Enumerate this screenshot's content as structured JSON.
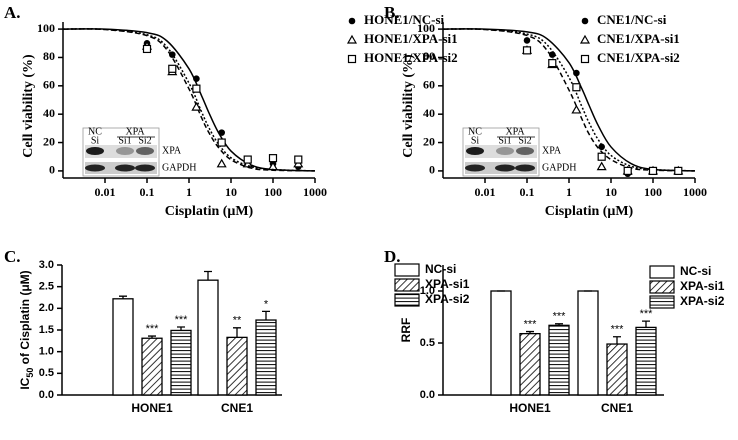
{
  "chart_data": [
    {
      "type": "dose_response",
      "panel_label": "A.",
      "y_label": "Cell viability (%)",
      "x_label": "Cisplatin (μM)",
      "log_x": true,
      "xlim": [
        0.001,
        1000
      ],
      "ylim": [
        -5,
        105
      ],
      "xticks": [
        0.01,
        0.1,
        1,
        10,
        100,
        1000
      ],
      "yticks": [
        0,
        20,
        40,
        60,
        80,
        100
      ],
      "x": [
        0.1,
        0.4,
        1.5,
        6,
        25,
        100,
        400
      ],
      "curve_x": [
        0.001,
        0.01,
        0.1,
        0.3,
        1,
        2,
        3,
        5,
        10,
        30,
        100,
        1000
      ],
      "series": [
        {
          "name": "HONE1/NC-si",
          "marker": "circle",
          "line": "solid",
          "values": [
            90,
            82,
            65,
            27,
            8,
            5,
            3
          ],
          "curve": [
            100,
            100,
            97.5,
            91.6,
            72,
            52.9,
            40.8,
            27.2,
            14,
            4.2,
            1,
            0
          ]
        },
        {
          "name": "HONE1/XPA-si1",
          "marker": "triangle",
          "line": "dashed",
          "values": [
            88,
            70,
            45,
            5,
            5,
            3,
            5
          ],
          "curve": [
            100,
            99.7,
            95.4,
            85.3,
            57.8,
            37.4,
            26.8,
            16.6,
            7.9,
            2,
            0.5,
            0
          ]
        },
        {
          "name": "HONE1/XPA-si2",
          "marker": "square",
          "line": "dotted",
          "values": [
            86,
            72,
            58,
            20,
            8,
            9,
            8
          ],
          "curve": [
            100,
            99.8,
            96,
            87.3,
            61.9,
            41.5,
            30.3,
            19.1,
            9.3,
            3,
            1,
            0
          ]
        }
      ],
      "inset": {
        "lane_top": [
          "NC",
          "XPA"
        ],
        "lane_bottom": [
          "Si",
          "Si1",
          "Si2"
        ],
        "rows": [
          "XPA",
          "GAPDH"
        ]
      }
    },
    {
      "type": "dose_response",
      "panel_label": "B.",
      "y_label": "Cell viability (%)",
      "x_label": "Cisplatin (μM)",
      "log_x": true,
      "xlim": [
        0.001,
        1000
      ],
      "ylim": [
        -5,
        105
      ],
      "xticks": [
        0.01,
        0.1,
        1,
        10,
        100,
        1000
      ],
      "yticks": [
        0,
        20,
        40,
        60,
        80,
        100
      ],
      "x": [
        0.1,
        0.4,
        1.5,
        6,
        25,
        100,
        400
      ],
      "curve_x": [
        0.001,
        0.01,
        0.1,
        0.3,
        1,
        2,
        3,
        5,
        10,
        30,
        100,
        1000
      ],
      "series": [
        {
          "name": "CNE1/NC-si",
          "marker": "circle",
          "line": "solid",
          "values": [
            92,
            82,
            69,
            17,
            -2,
            0,
            0
          ],
          "curve": [
            100,
            100,
            98,
            93.2,
            76.3,
            58.3,
            46.3,
            31.8,
            16.9,
            5.2,
            1,
            0
          ]
        },
        {
          "name": "CNE1/XPA-si1",
          "marker": "triangle",
          "line": "dashed",
          "values": [
            85,
            75,
            43,
            3,
            0,
            0,
            0
          ],
          "curve": [
            100,
            99.7,
            95.5,
            85,
            57,
            37,
            26,
            16,
            8,
            2,
            0.5,
            0
          ]
        },
        {
          "name": "CNE1/XPA-si2",
          "marker": "square",
          "line": "dotted",
          "values": [
            85,
            76,
            59,
            10,
            0,
            0,
            0
          ],
          "curve": [
            100,
            99.8,
            96.5,
            89,
            65.9,
            45.7,
            34,
            21.9,
            10.9,
            3.3,
            1,
            0
          ]
        }
      ],
      "inset": {
        "lane_top": [
          "NC",
          "XPA"
        ],
        "lane_bottom": [
          "Si",
          "Si1",
          "Si2"
        ],
        "rows": [
          "XPA",
          "GAPDH"
        ]
      }
    },
    {
      "type": "bar",
      "panel_label": "C.",
      "y_label_parts": [
        "IC",
        "50",
        " of Cisplatin (μM)"
      ],
      "categories": [
        "HONE1",
        "CNE1"
      ],
      "ylim": [
        0,
        3.0
      ],
      "yticks": [
        {
          "value": 0,
          "label": "0.0"
        },
        0.5,
        {
          "value": 1,
          "label": "1.0"
        },
        1.5,
        {
          "value": 2,
          "label": "2.0"
        },
        2.5,
        {
          "value": 3,
          "label": "3.0"
        }
      ],
      "series": [
        {
          "name": "NC-si",
          "pattern": "none",
          "values": [
            2.22,
            2.65
          ],
          "errors": [
            0.06,
            0.2
          ]
        },
        {
          "name": "XPA-si1",
          "pattern": "diagonal",
          "values": [
            1.31,
            1.33
          ],
          "errors": [
            0.05,
            0.22
          ],
          "significance": [
            "***",
            "**"
          ]
        },
        {
          "name": "XPA-si2",
          "pattern": "horizontal",
          "values": [
            1.49,
            1.73
          ],
          "errors": [
            0.08,
            0.2
          ],
          "significance": [
            "***",
            "*"
          ]
        }
      ]
    },
    {
      "type": "bar",
      "panel_label": "D.",
      "y_label": "RRF",
      "categories": [
        "HONE1",
        "CNE1"
      ],
      "ylim": [
        0,
        1.25
      ],
      "yticks": [
        {
          "value": 0,
          "label": "0.0"
        },
        0.5,
        {
          "value": 1,
          "label": "1.0"
        }
      ],
      "series": [
        {
          "name": "NC-si",
          "pattern": "none",
          "values": [
            1,
            1
          ],
          "errors": [
            0,
            0
          ]
        },
        {
          "name": "XPA-si1",
          "pattern": "diagonal",
          "values": [
            0.59,
            0.49
          ],
          "errors": [
            0.02,
            0.07
          ],
          "significance": [
            "***",
            "***"
          ]
        },
        {
          "name": "XPA-si2",
          "pattern": "horizontal",
          "values": [
            0.67,
            0.65
          ],
          "errors": [
            0.015,
            0.06
          ],
          "significance": [
            "***",
            "***"
          ]
        }
      ]
    }
  ]
}
